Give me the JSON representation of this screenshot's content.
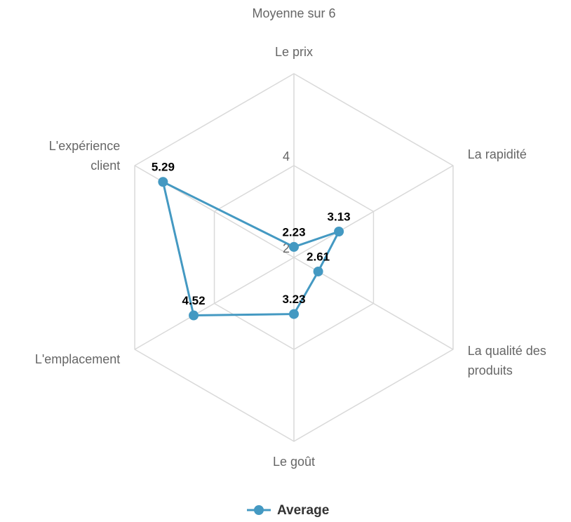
{
  "chart_data": {
    "type": "radar",
    "title": "Moyenne sur 6",
    "categories": [
      "Le prix",
      "La rapidité",
      "La qualité des produits",
      "Le goût",
      "L'emplacement",
      "L'expérience client"
    ],
    "series": [
      {
        "name": "Average",
        "color": "#4499c2",
        "values": [
          2.23,
          3.13,
          2.61,
          3.23,
          4.52,
          5.29
        ]
      }
    ],
    "ylim": [
      2,
      6
    ],
    "yticks": [
      2,
      4
    ],
    "grid": true,
    "legend": "bottom"
  }
}
